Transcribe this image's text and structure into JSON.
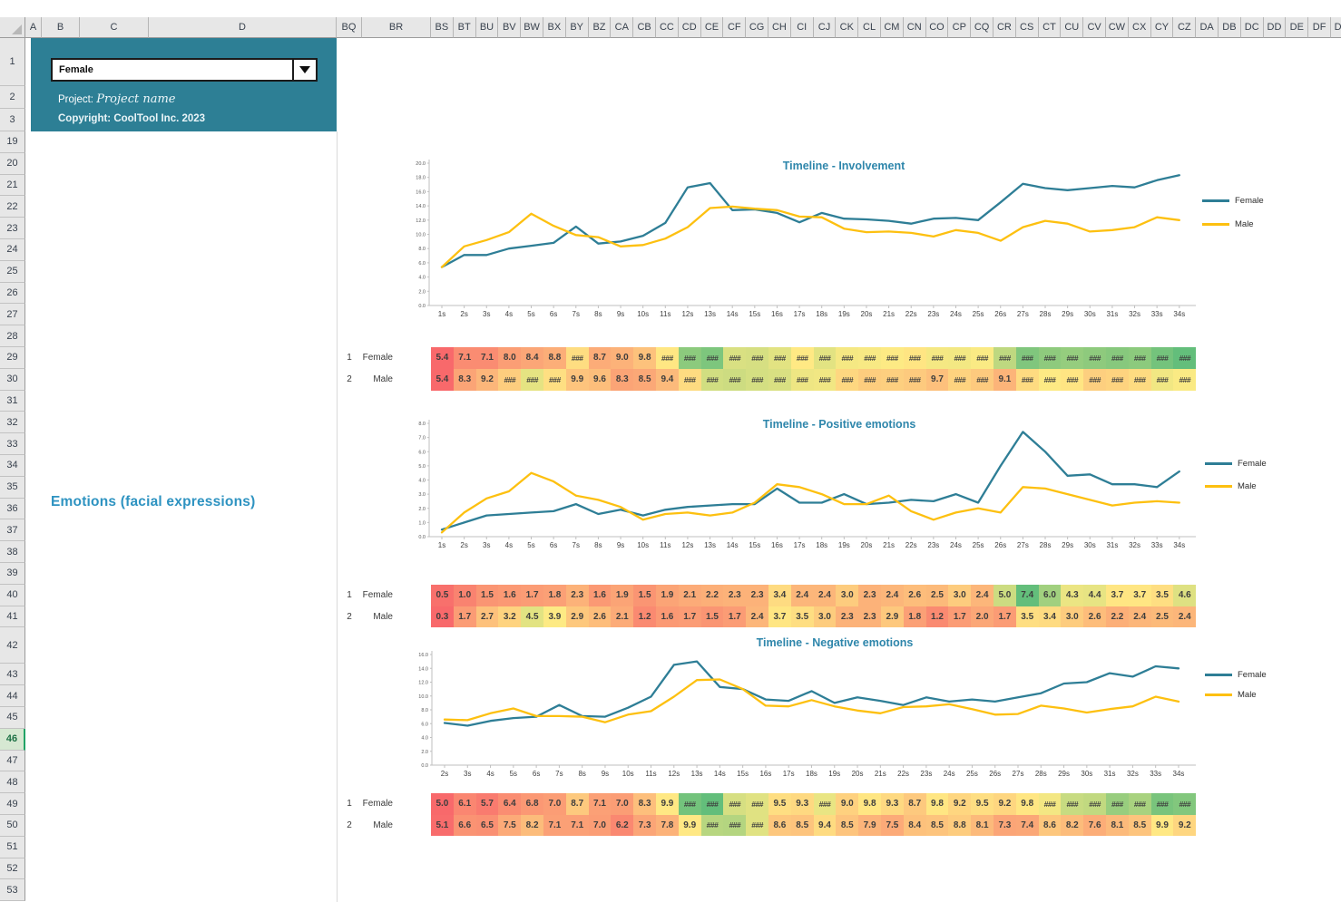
{
  "app": {
    "dropdown_value": "Female",
    "project_label": "Project:",
    "project_name": "Project name",
    "copyright": "Copyright: CoolTool Inc. 2023",
    "section_title": "Emotions (facial expressions)"
  },
  "spreadsheet": {
    "left_column_headers": [
      "A",
      "B",
      "C",
      "D"
    ],
    "right_column_headers": [
      "BQ",
      "BR",
      "BS",
      "BT",
      "BU",
      "BV",
      "BW",
      "BX",
      "BY",
      "BZ",
      "CA",
      "CB",
      "CC",
      "CD",
      "CE",
      "CF",
      "CG",
      "CH",
      "CI",
      "CJ",
      "CK",
      "CL",
      "CM",
      "CN",
      "CO",
      "CP",
      "CQ",
      "CR",
      "CS",
      "CT",
      "CU",
      "CV",
      "CW",
      "CX",
      "CY",
      "CZ",
      "DA",
      "DB",
      "DC",
      "DD",
      "DE",
      "DF",
      "DG"
    ],
    "top_rows": [
      "1",
      "2",
      "3"
    ],
    "main_rows_start": 19,
    "main_rows_end": 53,
    "selected_row": "46"
  },
  "colors": {
    "female_line": "#2e7e96",
    "male_line": "#fdc010",
    "panel_teal": "#2d7f95",
    "title_blue": "#2e86ab",
    "scale_low": "#f8696b",
    "scale_mid": "#ffeb84",
    "scale_high": "#63be7b",
    "axis_gray": "#bfbfbf"
  },
  "chart_data": [
    {
      "type": "line",
      "title": "Timeline - Involvement",
      "x_labels": [
        "1s",
        "2s",
        "3s",
        "4s",
        "5s",
        "6s",
        "7s",
        "8s",
        "9s",
        "10s",
        "11s",
        "12s",
        "13s",
        "14s",
        "15s",
        "16s",
        "17s",
        "18s",
        "19s",
        "20s",
        "21s",
        "22s",
        "23s",
        "24s",
        "25s",
        "26s",
        "27s",
        "28s",
        "29s",
        "30s",
        "31s",
        "32s",
        "33s",
        "34s"
      ],
      "y_min": 0,
      "y_max": 20,
      "y_step": 2,
      "legend_position": "right",
      "series": [
        {
          "name": "Female",
          "values": [
            5.4,
            7.1,
            7.1,
            8.0,
            8.4,
            8.8,
            11.1,
            8.7,
            9.0,
            9.8,
            11.6,
            16.6,
            17.2,
            13.4,
            13.5,
            13.0,
            11.7,
            13.0,
            12.2,
            12.1,
            11.9,
            11.5,
            12.2,
            12.3,
            12.0,
            14.5,
            17.1,
            16.5,
            16.2,
            16.5,
            16.8,
            16.6,
            17.6,
            18.3
          ]
        },
        {
          "name": "Male",
          "values": [
            5.4,
            8.3,
            9.2,
            10.3,
            12.9,
            11.2,
            9.9,
            9.6,
            8.3,
            8.5,
            9.4,
            11.0,
            13.7,
            13.9,
            13.6,
            13.4,
            12.5,
            12.4,
            10.8,
            10.3,
            10.4,
            10.2,
            9.7,
            10.6,
            10.2,
            9.1,
            11.0,
            11.9,
            11.5,
            10.4,
            10.6,
            11.0,
            12.4,
            12.0
          ]
        }
      ]
    },
    {
      "type": "line",
      "title": "Timeline - Positive emotions",
      "x_labels": [
        "1s",
        "2s",
        "3s",
        "4s",
        "5s",
        "6s",
        "7s",
        "8s",
        "9s",
        "10s",
        "11s",
        "12s",
        "13s",
        "14s",
        "15s",
        "16s",
        "17s",
        "18s",
        "19s",
        "20s",
        "21s",
        "22s",
        "23s",
        "24s",
        "25s",
        "26s",
        "27s",
        "28s",
        "29s",
        "30s",
        "31s",
        "32s",
        "33s",
        "34s"
      ],
      "y_min": 0,
      "y_max": 8,
      "y_step": 1,
      "legend_position": "right",
      "series": [
        {
          "name": "Female",
          "values": [
            0.5,
            1.0,
            1.5,
            1.6,
            1.7,
            1.8,
            2.3,
            1.6,
            1.9,
            1.5,
            1.9,
            2.1,
            2.2,
            2.3,
            2.3,
            3.4,
            2.4,
            2.4,
            3.0,
            2.3,
            2.4,
            2.6,
            2.5,
            3.0,
            2.4,
            5.0,
            7.4,
            6.0,
            4.3,
            4.4,
            3.7,
            3.7,
            3.5,
            4.6
          ]
        },
        {
          "name": "Male",
          "values": [
            0.3,
            1.7,
            2.7,
            3.2,
            4.5,
            3.9,
            2.9,
            2.6,
            2.1,
            1.2,
            1.6,
            1.7,
            1.5,
            1.7,
            2.4,
            3.7,
            3.5,
            3.0,
            2.3,
            2.3,
            2.9,
            1.8,
            1.2,
            1.7,
            2.0,
            1.7,
            3.5,
            3.4,
            3.0,
            2.6,
            2.2,
            2.4,
            2.5,
            2.4
          ]
        }
      ]
    },
    {
      "type": "line",
      "title": "Timeline - Negative emotions",
      "x_labels": [
        "2s",
        "3s",
        "4s",
        "5s",
        "6s",
        "7s",
        "8s",
        "9s",
        "10s",
        "11s",
        "12s",
        "13s",
        "14s",
        "15s",
        "16s",
        "17s",
        "18s",
        "19s",
        "20s",
        "21s",
        "22s",
        "23s",
        "24s",
        "25s",
        "26s",
        "27s",
        "28s",
        "29s",
        "30s",
        "31s",
        "32s",
        "33s",
        "34s"
      ],
      "y_min": 0,
      "y_max": 16,
      "y_step": 2,
      "legend_position": "right",
      "series": [
        {
          "name": "Female",
          "values": [
            6.1,
            5.7,
            6.4,
            6.8,
            7.0,
            8.7,
            7.1,
            7.0,
            8.3,
            9.9,
            14.5,
            15.0,
            11.3,
            11.0,
            9.5,
            9.3,
            10.7,
            9.0,
            9.8,
            9.3,
            8.7,
            9.8,
            9.2,
            9.5,
            9.2,
            9.8,
            10.4,
            11.8,
            12.0,
            13.3,
            12.8,
            14.3,
            14.0
          ]
        },
        {
          "name": "Male",
          "values": [
            6.6,
            6.5,
            7.5,
            8.2,
            7.1,
            7.1,
            7.0,
            6.2,
            7.3,
            7.8,
            9.9,
            12.3,
            12.4,
            11.0,
            8.6,
            8.5,
            9.4,
            8.5,
            7.9,
            7.5,
            8.4,
            8.5,
            8.8,
            8.1,
            7.3,
            7.4,
            8.6,
            8.2,
            7.6,
            8.1,
            8.5,
            9.9,
            9.2
          ]
        }
      ]
    }
  ],
  "tables": [
    {
      "name": "involvement-heatmap",
      "row_numbers": [
        "1",
        "2"
      ],
      "row_labels": [
        "Female",
        "Male"
      ],
      "scale": {
        "min": 5.4,
        "mid": 11.8,
        "max": 18.3
      },
      "rows": [
        {
          "display": [
            "5.4",
            "7.1",
            "7.1",
            "8.0",
            "8.4",
            "8.8",
            "###",
            "8.7",
            "9.0",
            "9.8",
            "###",
            "###",
            "###",
            "###",
            "###",
            "###",
            "###",
            "###",
            "###",
            "###",
            "###",
            "###",
            "###",
            "###",
            "###",
            "###",
            "###",
            "###",
            "###",
            "###",
            "###",
            "###",
            "###",
            "###"
          ],
          "values": [
            5.4,
            7.1,
            7.1,
            8.0,
            8.4,
            8.8,
            11.1,
            8.7,
            9.0,
            9.8,
            11.6,
            16.6,
            17.2,
            13.4,
            13.5,
            13.0,
            11.7,
            13.0,
            12.2,
            12.1,
            11.9,
            11.5,
            12.2,
            12.3,
            12.0,
            14.5,
            17.1,
            16.5,
            16.2,
            16.5,
            16.8,
            16.6,
            17.6,
            18.3
          ]
        },
        {
          "display": [
            "5.4",
            "8.3",
            "9.2",
            "###",
            "###",
            "###",
            "9.9",
            "9.6",
            "8.3",
            "8.5",
            "9.4",
            "###",
            "###",
            "###",
            "###",
            "###",
            "###",
            "###",
            "###",
            "###",
            "###",
            "###",
            "9.7",
            "###",
            "###",
            "9.1",
            "###",
            "###",
            "###",
            "###",
            "###",
            "###",
            "###",
            "###"
          ],
          "values": [
            5.4,
            8.3,
            9.2,
            10.3,
            12.9,
            11.2,
            9.9,
            9.6,
            8.3,
            8.5,
            9.4,
            11.0,
            13.7,
            13.9,
            13.6,
            13.4,
            12.5,
            12.4,
            10.8,
            10.3,
            10.4,
            10.2,
            9.7,
            10.6,
            10.2,
            9.1,
            11.0,
            11.9,
            11.5,
            10.4,
            10.6,
            11.0,
            12.4,
            12.0
          ]
        }
      ]
    },
    {
      "name": "positive-heatmap",
      "row_numbers": [
        "1",
        "2"
      ],
      "row_labels": [
        "Female",
        "Male"
      ],
      "scale": {
        "min": 0.3,
        "mid": 3.85,
        "max": 7.4
      },
      "rows": [
        {
          "display": [
            "0.5",
            "1.0",
            "1.5",
            "1.6",
            "1.7",
            "1.8",
            "2.3",
            "1.6",
            "1.9",
            "1.5",
            "1.9",
            "2.1",
            "2.2",
            "2.3",
            "2.3",
            "3.4",
            "2.4",
            "2.4",
            "3.0",
            "2.3",
            "2.4",
            "2.6",
            "2.5",
            "3.0",
            "2.4",
            "5.0",
            "7.4",
            "6.0",
            "4.3",
            "4.4",
            "3.7",
            "3.7",
            "3.5",
            "4.6"
          ],
          "values": [
            0.5,
            1.0,
            1.5,
            1.6,
            1.7,
            1.8,
            2.3,
            1.6,
            1.9,
            1.5,
            1.9,
            2.1,
            2.2,
            2.3,
            2.3,
            3.4,
            2.4,
            2.4,
            3.0,
            2.3,
            2.4,
            2.6,
            2.5,
            3.0,
            2.4,
            5.0,
            7.4,
            6.0,
            4.3,
            4.4,
            3.7,
            3.7,
            3.5,
            4.6
          ]
        },
        {
          "display": [
            "0.3",
            "1.7",
            "2.7",
            "3.2",
            "4.5",
            "3.9",
            "2.9",
            "2.6",
            "2.1",
            "1.2",
            "1.6",
            "1.7",
            "1.5",
            "1.7",
            "2.4",
            "3.7",
            "3.5",
            "3.0",
            "2.3",
            "2.3",
            "2.9",
            "1.8",
            "1.2",
            "1.7",
            "2.0",
            "1.7",
            "3.5",
            "3.4",
            "3.0",
            "2.6",
            "2.2",
            "2.4",
            "2.5",
            "2.4"
          ],
          "values": [
            0.3,
            1.7,
            2.7,
            3.2,
            4.5,
            3.9,
            2.9,
            2.6,
            2.1,
            1.2,
            1.6,
            1.7,
            1.5,
            1.7,
            2.4,
            3.7,
            3.5,
            3.0,
            2.3,
            2.3,
            2.9,
            1.8,
            1.2,
            1.7,
            2.0,
            1.7,
            3.5,
            3.4,
            3.0,
            2.6,
            2.2,
            2.4,
            2.5,
            2.4
          ]
        }
      ]
    },
    {
      "name": "negative-heatmap",
      "row_numbers": [
        "1",
        "2"
      ],
      "row_labels": [
        "Female",
        "Male"
      ],
      "scale": {
        "min": 5.0,
        "mid": 10.0,
        "max": 15.0
      },
      "rows": [
        {
          "display": [
            "5.0",
            "6.1",
            "5.7",
            "6.4",
            "6.8",
            "7.0",
            "8.7",
            "7.1",
            "7.0",
            "8.3",
            "9.9",
            "###",
            "###",
            "###",
            "###",
            "9.5",
            "9.3",
            "###",
            "9.0",
            "9.8",
            "9.3",
            "8.7",
            "9.8",
            "9.2",
            "9.5",
            "9.2",
            "9.8",
            "###",
            "###",
            "###",
            "###",
            "###",
            "###",
            "###"
          ],
          "values": [
            5.0,
            6.1,
            5.7,
            6.4,
            6.8,
            7.0,
            8.7,
            7.1,
            7.0,
            8.3,
            9.9,
            14.5,
            15.0,
            11.3,
            11.0,
            9.5,
            9.3,
            10.7,
            9.0,
            9.8,
            9.3,
            8.7,
            9.8,
            9.2,
            9.5,
            9.2,
            9.8,
            10.4,
            11.8,
            12.0,
            13.3,
            12.8,
            14.3,
            14.0
          ]
        },
        {
          "display": [
            "5.1",
            "6.6",
            "6.5",
            "7.5",
            "8.2",
            "7.1",
            "7.1",
            "7.0",
            "6.2",
            "7.3",
            "7.8",
            "9.9",
            "###",
            "###",
            "###",
            "8.6",
            "8.5",
            "9.4",
            "8.5",
            "7.9",
            "7.5",
            "8.4",
            "8.5",
            "8.8",
            "8.1",
            "7.3",
            "7.4",
            "8.6",
            "8.2",
            "7.6",
            "8.1",
            "8.5",
            "9.9",
            "9.2"
          ],
          "values": [
            5.1,
            6.6,
            6.5,
            7.5,
            8.2,
            7.1,
            7.1,
            7.0,
            6.2,
            7.3,
            7.8,
            9.9,
            12.3,
            12.4,
            11.0,
            8.6,
            8.5,
            9.4,
            8.5,
            7.9,
            7.5,
            8.4,
            8.5,
            8.8,
            8.1,
            7.3,
            7.4,
            8.6,
            8.2,
            7.6,
            8.1,
            8.5,
            9.9,
            9.2
          ]
        }
      ]
    }
  ]
}
